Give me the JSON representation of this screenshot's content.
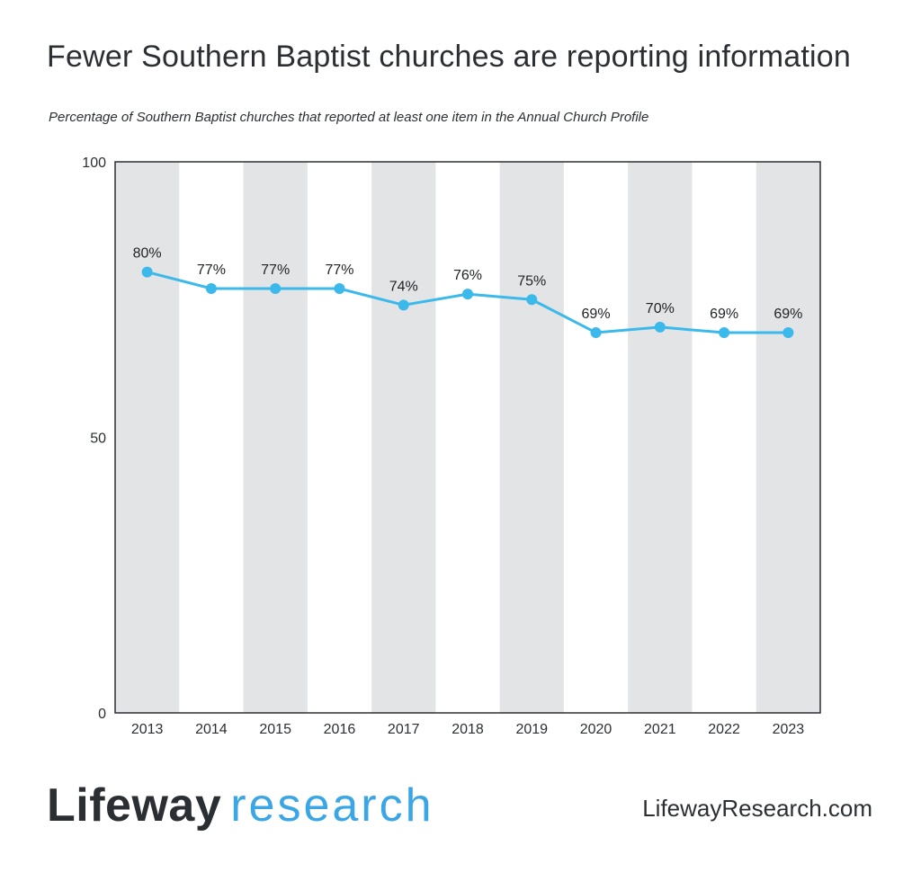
{
  "title": "Fewer Southern Baptist churches are reporting information",
  "subtitle": "Percentage of Southern Baptist churches that reported at least one item in the Annual Church Profile",
  "brand": {
    "name_bold": "Lifeway",
    "name_light": "research",
    "website": "LifewayResearch.com"
  },
  "colors": {
    "line": "#3bb9ea",
    "stripe": "#e3e4e6",
    "frame": "#2b2f33"
  },
  "chart_data": {
    "type": "line",
    "categories": [
      "2013",
      "2014",
      "2015",
      "2016",
      "2017",
      "2018",
      "2019",
      "2020",
      "2021",
      "2022",
      "2023"
    ],
    "series": [
      {
        "values": [
          80,
          77,
          77,
          77,
          74,
          76,
          75,
          69,
          70,
          69,
          69
        ],
        "labels": [
          "80%",
          "77%",
          "77%",
          "77%",
          "74%",
          "76%",
          "75%",
          "69%",
          "70%",
          "69%",
          "69%"
        ]
      }
    ],
    "ylim": [
      0,
      100
    ],
    "yticks": [
      "0",
      "50",
      "100"
    ],
    "alternating_column_shading": true,
    "grid": false
  }
}
